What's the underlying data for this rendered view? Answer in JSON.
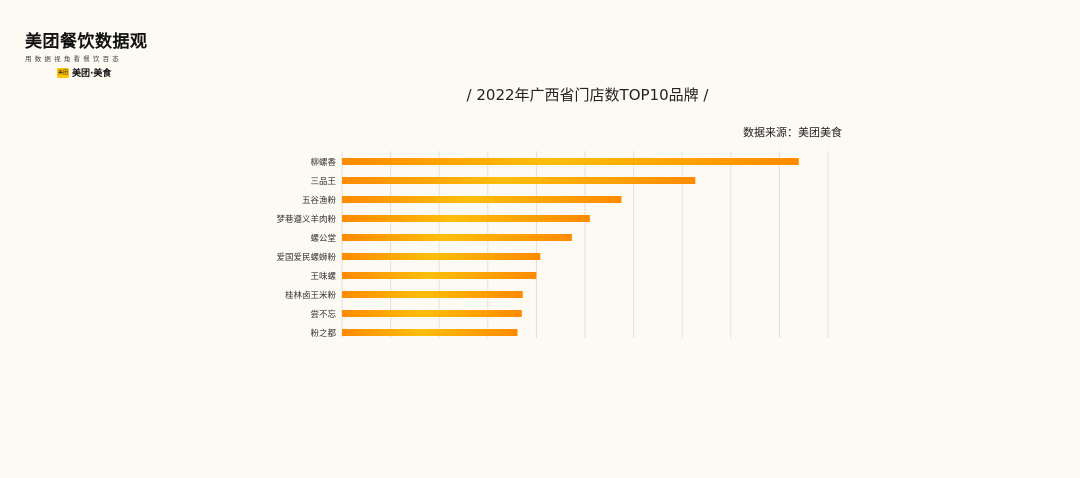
{
  "logo": {
    "title": "美团餐饮数据观",
    "subtitle": "用数据视角看餐饮百态",
    "badge": "美团",
    "brand": "美团·美食"
  },
  "title_text": "/  2022年广西省门店数TOP10品牌  /",
  "source": "数据来源：美团美食",
  "colors": {
    "background": "#fdf9f3",
    "bar_start": "#ff8a00",
    "bar_mid": "#ffbe0b",
    "bar_end": "#ff8a00",
    "grid": "#e4e0da"
  },
  "chart_data": {
    "type": "bar",
    "orientation": "horizontal",
    "title": "2022年广西省门店数TOP10品牌",
    "categories": [
      "柳螺香",
      "三品王",
      "五谷渔粉",
      "梦巷遵义羊肉粉",
      "螺公堂",
      "爱国爱民螺蛳粉",
      "王味螺",
      "桂林卤王米粉",
      "尝不忘",
      "粉之都"
    ],
    "values": [
      940,
      727,
      575,
      510,
      473,
      408,
      400,
      372,
      370,
      361
    ],
    "xlim": [
      0,
      1000
    ],
    "grid": true,
    "legend": false
  }
}
